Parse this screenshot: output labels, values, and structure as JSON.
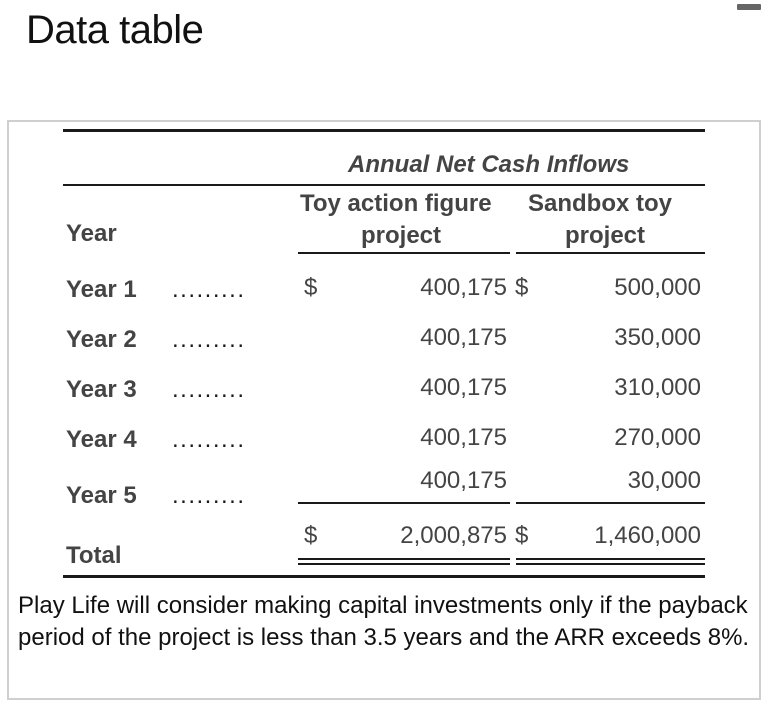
{
  "page": {
    "title": "Data table"
  },
  "table": {
    "caption": "Annual Net Cash Inflows",
    "year_header": "Year",
    "columns": [
      {
        "line1": "Toy action figure",
        "line2": "project"
      },
      {
        "line1": "Sandbox toy",
        "line2": "project"
      }
    ],
    "dollar": "$",
    "leader": ".........",
    "rows": [
      {
        "label": "Year 1",
        "a": "400,175",
        "b": "500,000"
      },
      {
        "label": "Year 2",
        "a": "400,175",
        "b": "350,000"
      },
      {
        "label": "Year 3",
        "a": "400,175",
        "b": "310,000"
      },
      {
        "label": "Year 4",
        "a": "400,175",
        "b": "270,000"
      },
      {
        "label": "Year 5",
        "a": "400,175",
        "b": "30,000"
      }
    ],
    "total": {
      "label": "Total",
      "a": "2,000,875",
      "b": "1,460,000"
    }
  },
  "note": "Play Life will consider making capital investments only if the payback period of the project is less than 3.5 years and the ARR exceeds 8%."
}
